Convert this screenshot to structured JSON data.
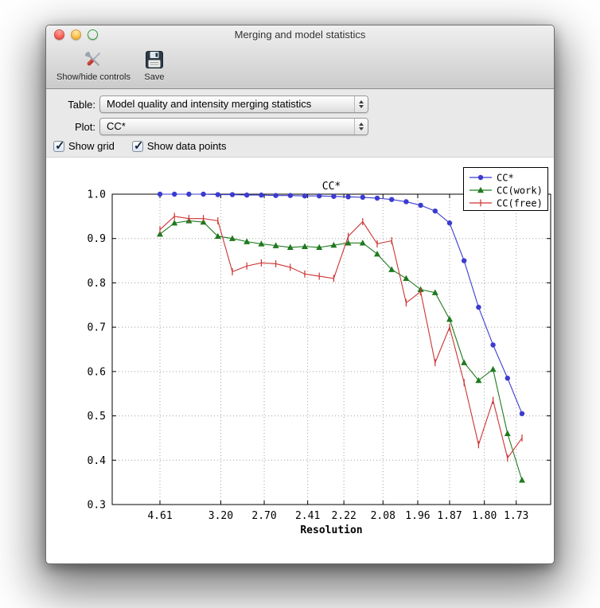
{
  "window": {
    "title": "Merging and model statistics"
  },
  "toolbar": {
    "buttons": [
      {
        "label": "Show/hide controls",
        "icon": "tools-icon"
      },
      {
        "label": "Save",
        "icon": "save-icon"
      }
    ]
  },
  "controls": {
    "table_label": "Table:",
    "table_value": "Model quality and intensity merging statistics",
    "plot_label": "Plot:",
    "plot_value": "CC*",
    "checkboxes": [
      {
        "label": "Show grid",
        "checked": true
      },
      {
        "label": "Show data points",
        "checked": true
      }
    ]
  },
  "chart_data": {
    "type": "line",
    "title": "CC*",
    "xlabel": "Resolution",
    "ylabel": "",
    "ylim": [
      0.3,
      1.0
    ],
    "yticks": [
      1.0,
      0.9,
      0.8,
      0.7,
      0.6,
      0.5,
      0.4,
      0.3
    ],
    "x_ticks": [
      {
        "label": "4.61",
        "pos": 0
      },
      {
        "label": "3.20",
        "pos": 4.2
      },
      {
        "label": "2.70",
        "pos": 7.2
      },
      {
        "label": "2.41",
        "pos": 10.2
      },
      {
        "label": "2.22",
        "pos": 12.7
      },
      {
        "label": "2.08",
        "pos": 15.4
      },
      {
        "label": "1.96",
        "pos": 17.8
      },
      {
        "label": "1.87",
        "pos": 20.0
      },
      {
        "label": "1.80",
        "pos": 22.4
      },
      {
        "label": "1.73",
        "pos": 24.6
      }
    ],
    "grid": true,
    "show_data_points": true,
    "legend_position": "top-right",
    "series": [
      {
        "name": "CC*",
        "color": "#3b3bd0",
        "marker": "circle",
        "values": [
          1.0,
          1.0,
          1.0,
          1.0,
          0.999,
          0.999,
          0.998,
          0.998,
          0.997,
          0.997,
          0.996,
          0.996,
          0.995,
          0.994,
          0.993,
          0.991,
          0.988,
          0.983,
          0.975,
          0.962,
          0.935,
          0.85,
          0.745,
          0.66,
          0.585,
          0.505
        ]
      },
      {
        "name": "CC(work)",
        "color": "#1f7a1f",
        "marker": "triangle",
        "values": [
          0.91,
          0.935,
          0.94,
          0.937,
          0.905,
          0.9,
          0.893,
          0.888,
          0.884,
          0.88,
          0.882,
          0.88,
          0.885,
          0.89,
          0.89,
          0.865,
          0.83,
          0.81,
          0.785,
          0.778,
          0.718,
          0.62,
          0.58,
          0.605,
          0.46,
          0.355
        ]
      },
      {
        "name": "CC(free)",
        "color": "#cc3333",
        "marker": "tick",
        "values": [
          0.92,
          0.95,
          0.945,
          0.945,
          0.94,
          0.825,
          0.838,
          0.845,
          0.843,
          0.835,
          0.82,
          0.815,
          0.81,
          0.905,
          0.938,
          0.888,
          0.895,
          0.755,
          0.78,
          0.62,
          0.7,
          0.575,
          0.435,
          0.535,
          0.405,
          0.45
        ]
      }
    ]
  }
}
